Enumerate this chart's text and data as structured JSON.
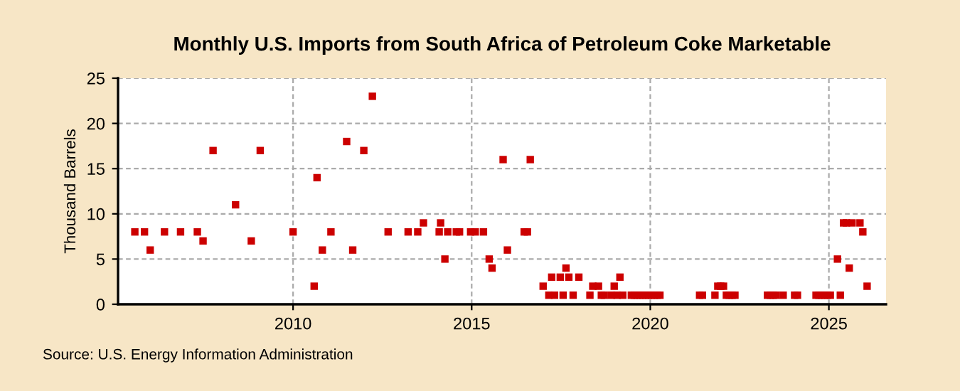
{
  "chart_data": {
    "type": "scatter",
    "title": "Monthly U.S. Imports from South Africa of Petroleum Coke Marketable",
    "ylabel": "Thousand Barrels",
    "annotations": [
      "Source: U.S. Energy Information Administration"
    ],
    "xlim": [
      2005.1,
      2026.6
    ],
    "xticks": [
      2010,
      2015,
      2020,
      2025
    ],
    "ylim": [
      0,
      25
    ],
    "yticks": [
      0,
      5,
      10,
      15,
      20,
      25
    ],
    "grid": true,
    "marker": "square",
    "series": [
      {
        "color": "#cc0000",
        "x": [
          2005.57,
          2005.84,
          2006.0,
          2006.4,
          2006.85,
          2007.32,
          2007.48,
          2007.76,
          2008.39,
          2008.83,
          2009.08,
          2010.0,
          2010.59,
          2010.67,
          2010.82,
          2011.06,
          2011.5,
          2011.67,
          2011.98,
          2012.22,
          2012.66,
          2013.22,
          2013.49,
          2013.65,
          2014.09,
          2014.13,
          2014.25,
          2014.33,
          2014.57,
          2014.66,
          2014.97,
          2015.1,
          2015.33,
          2015.49,
          2015.57,
          2015.88,
          2016.0,
          2016.47,
          2016.56,
          2016.64,
          2017.0,
          2017.16,
          2017.24,
          2017.32,
          2017.48,
          2017.56,
          2017.64,
          2017.72,
          2017.84,
          2018.0,
          2018.31,
          2018.39,
          2018.55,
          2018.63,
          2018.71,
          2018.91,
          2018.99,
          2019.07,
          2019.15,
          2019.23,
          2019.47,
          2019.55,
          2019.63,
          2019.71,
          2019.79,
          2019.87,
          2019.95,
          2020.03,
          2020.11,
          2020.19,
          2020.27,
          2021.38,
          2021.46,
          2021.81,
          2021.89,
          2021.97,
          2022.05,
          2022.13,
          2022.21,
          2022.29,
          2022.37,
          2023.28,
          2023.36,
          2023.44,
          2023.52,
          2023.72,
          2024.04,
          2024.12,
          2024.64,
          2024.72,
          2024.8,
          2024.88,
          2024.96,
          2025.04,
          2025.24,
          2025.32,
          2025.41,
          2025.49,
          2025.57,
          2025.65,
          2025.87,
          2025.95,
          2026.07
        ],
        "values": [
          8,
          8,
          6,
          8,
          8,
          8,
          7,
          17,
          11,
          7,
          17,
          8,
          2,
          14,
          6,
          8,
          18,
          6,
          17,
          23,
          8,
          8,
          8,
          9,
          8,
          9,
          5,
          8,
          8,
          8,
          8,
          8,
          8,
          5,
          4,
          16,
          6,
          8,
          8,
          16,
          2,
          1,
          3,
          1,
          3,
          1,
          4,
          3,
          1,
          3,
          1,
          2,
          2,
          1,
          1,
          1,
          2,
          1,
          3,
          1,
          1,
          1,
          1,
          1,
          1,
          1,
          1,
          1,
          1,
          1,
          1,
          1,
          1,
          1,
          2,
          2,
          2,
          1,
          1,
          1,
          1,
          1,
          1,
          1,
          1,
          1,
          1,
          1,
          1,
          1,
          1,
          1,
          1,
          1,
          5,
          1,
          9,
          9,
          4,
          9,
          9,
          8,
          2
        ]
      }
    ]
  }
}
